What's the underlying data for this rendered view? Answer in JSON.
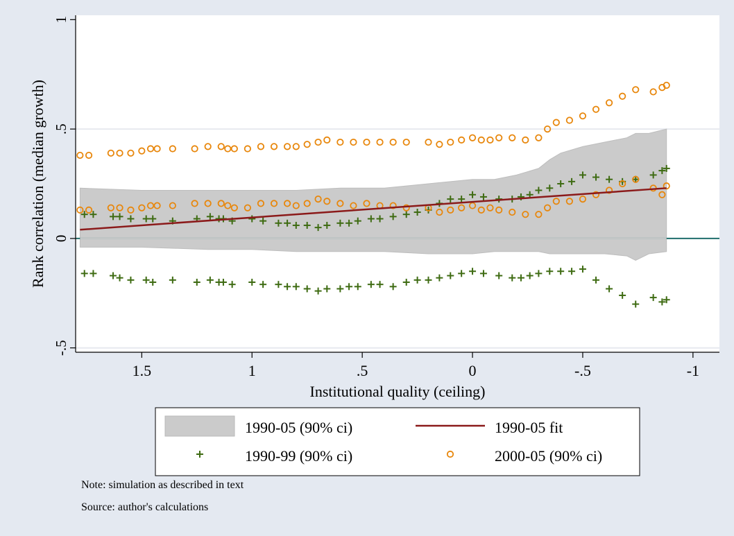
{
  "chart_data": {
    "type": "scatter",
    "title": "",
    "xlabel": "Institutional quality (ceiling)",
    "ylabel": "Rank correlation (median growth)",
    "xlim": [
      1.8,
      -1.12
    ],
    "ylim": [
      -0.52,
      1.02
    ],
    "x_reversed": true,
    "x_ticks": [
      1.5,
      1,
      0.5,
      0,
      -0.5,
      -1
    ],
    "x_tick_labels": [
      "1.5",
      "1",
      ".5",
      "0",
      "-.5",
      "-1"
    ],
    "y_ticks": [
      -0.5,
      0,
      0.5,
      1
    ],
    "y_tick_labels": [
      "-.5",
      "0",
      ".5",
      "1"
    ],
    "gridlines_y": [
      -0.5,
      0.5
    ],
    "reference_line_y": 0,
    "legend_position": "bottom",
    "series": [
      {
        "name": "1990-05 (90% ci)",
        "kind": "band",
        "color": "#cbcbcb",
        "x": [
          1.78,
          1.5,
          1.2,
          1.0,
          0.8,
          0.6,
          0.4,
          0.2,
          0.0,
          -0.1,
          -0.2,
          -0.3,
          -0.35,
          -0.4,
          -0.5,
          -0.6,
          -0.7,
          -0.74,
          -0.8,
          -0.88
        ],
        "lower": [
          -0.04,
          -0.04,
          -0.05,
          -0.05,
          -0.06,
          -0.06,
          -0.06,
          -0.07,
          -0.07,
          -0.06,
          -0.06,
          -0.06,
          -0.07,
          -0.07,
          -0.07,
          -0.07,
          -0.08,
          -0.1,
          -0.07,
          -0.06
        ],
        "upper": [
          0.23,
          0.22,
          0.22,
          0.22,
          0.22,
          0.23,
          0.23,
          0.25,
          0.27,
          0.27,
          0.29,
          0.32,
          0.36,
          0.39,
          0.42,
          0.44,
          0.46,
          0.48,
          0.48,
          0.5
        ]
      },
      {
        "name": "1990-05 fit",
        "kind": "line",
        "color": "#8b1a1a",
        "x": [
          1.78,
          -0.88
        ],
        "y": [
          0.04,
          0.23
        ]
      },
      {
        "name": "1990-99 (90% ci)",
        "kind": "plus",
        "color": "#3e6b12",
        "upper": {
          "x": [
            1.76,
            1.72,
            1.63,
            1.6,
            1.55,
            1.48,
            1.45,
            1.36,
            1.25,
            1.19,
            1.15,
            1.13,
            1.09,
            1.0,
            0.95,
            0.88,
            0.84,
            0.8,
            0.75,
            0.7,
            0.66,
            0.6,
            0.56,
            0.52,
            0.46,
            0.42,
            0.36,
            0.3,
            0.25,
            0.2,
            0.15,
            0.1,
            0.05,
            0.0,
            -0.05,
            -0.12,
            -0.18,
            -0.22,
            -0.26,
            -0.3,
            -0.35,
            -0.4,
            -0.45,
            -0.5,
            -0.56,
            -0.62,
            -0.68,
            -0.74,
            -0.82,
            -0.86,
            -0.88
          ],
          "y": [
            0.11,
            0.11,
            0.1,
            0.1,
            0.09,
            0.09,
            0.09,
            0.08,
            0.09,
            0.1,
            0.09,
            0.09,
            0.08,
            0.09,
            0.08,
            0.07,
            0.07,
            0.06,
            0.06,
            0.05,
            0.06,
            0.07,
            0.07,
            0.08,
            0.09,
            0.09,
            0.1,
            0.11,
            0.12,
            0.13,
            0.16,
            0.18,
            0.18,
            0.2,
            0.19,
            0.18,
            0.18,
            0.19,
            0.2,
            0.22,
            0.23,
            0.25,
            0.26,
            0.29,
            0.28,
            0.27,
            0.26,
            0.27,
            0.29,
            0.31,
            0.32
          ]
        },
        "lower": {
          "x": [
            1.76,
            1.72,
            1.63,
            1.6,
            1.55,
            1.48,
            1.45,
            1.36,
            1.25,
            1.19,
            1.15,
            1.13,
            1.09,
            1.0,
            0.95,
            0.88,
            0.84,
            0.8,
            0.75,
            0.7,
            0.66,
            0.6,
            0.56,
            0.52,
            0.46,
            0.42,
            0.36,
            0.3,
            0.25,
            0.2,
            0.15,
            0.1,
            0.05,
            0.0,
            -0.05,
            -0.12,
            -0.18,
            -0.22,
            -0.26,
            -0.3,
            -0.35,
            -0.4,
            -0.45,
            -0.5,
            -0.56,
            -0.62,
            -0.68,
            -0.74,
            -0.82,
            -0.86,
            -0.88
          ],
          "y": [
            -0.16,
            -0.16,
            -0.17,
            -0.18,
            -0.19,
            -0.19,
            -0.2,
            -0.19,
            -0.2,
            -0.19,
            -0.2,
            -0.2,
            -0.21,
            -0.2,
            -0.21,
            -0.21,
            -0.22,
            -0.22,
            -0.23,
            -0.24,
            -0.23,
            -0.23,
            -0.22,
            -0.22,
            -0.21,
            -0.21,
            -0.22,
            -0.2,
            -0.19,
            -0.19,
            -0.18,
            -0.17,
            -0.16,
            -0.15,
            -0.16,
            -0.17,
            -0.18,
            -0.18,
            -0.17,
            -0.16,
            -0.15,
            -0.15,
            -0.15,
            -0.14,
            -0.19,
            -0.23,
            -0.26,
            -0.3,
            -0.27,
            -0.29,
            -0.28
          ]
        }
      },
      {
        "name": "2000-05 (90% ci)",
        "kind": "circle",
        "color": "#e8870c",
        "upper": {
          "x": [
            1.78,
            1.74,
            1.64,
            1.6,
            1.55,
            1.5,
            1.46,
            1.43,
            1.36,
            1.26,
            1.2,
            1.14,
            1.11,
            1.08,
            1.02,
            0.96,
            0.9,
            0.84,
            0.8,
            0.75,
            0.7,
            0.66,
            0.6,
            0.54,
            0.48,
            0.42,
            0.36,
            0.3,
            0.2,
            0.15,
            0.1,
            0.05,
            0.0,
            -0.04,
            -0.08,
            -0.12,
            -0.18,
            -0.24,
            -0.3,
            -0.34,
            -0.38,
            -0.44,
            -0.5,
            -0.56,
            -0.62,
            -0.68,
            -0.74,
            -0.82,
            -0.86,
            -0.88
          ],
          "y": [
            0.38,
            0.38,
            0.39,
            0.39,
            0.39,
            0.4,
            0.41,
            0.41,
            0.41,
            0.41,
            0.42,
            0.42,
            0.41,
            0.41,
            0.41,
            0.42,
            0.42,
            0.42,
            0.42,
            0.43,
            0.44,
            0.45,
            0.44,
            0.44,
            0.44,
            0.44,
            0.44,
            0.44,
            0.44,
            0.43,
            0.44,
            0.45,
            0.46,
            0.45,
            0.45,
            0.46,
            0.46,
            0.45,
            0.46,
            0.5,
            0.53,
            0.54,
            0.56,
            0.59,
            0.62,
            0.65,
            0.68,
            0.67,
            0.69,
            0.7
          ]
        },
        "lower": {
          "x": [
            1.78,
            1.74,
            1.64,
            1.6,
            1.55,
            1.5,
            1.46,
            1.43,
            1.36,
            1.26,
            1.2,
            1.14,
            1.11,
            1.08,
            1.02,
            0.96,
            0.9,
            0.84,
            0.8,
            0.75,
            0.7,
            0.66,
            0.6,
            0.54,
            0.48,
            0.42,
            0.36,
            0.3,
            0.2,
            0.15,
            0.1,
            0.05,
            0.0,
            -0.04,
            -0.08,
            -0.12,
            -0.18,
            -0.24,
            -0.3,
            -0.34,
            -0.38,
            -0.44,
            -0.5,
            -0.56,
            -0.62,
            -0.68,
            -0.74,
            -0.82,
            -0.86,
            -0.88
          ],
          "y": [
            0.13,
            0.13,
            0.14,
            0.14,
            0.13,
            0.14,
            0.15,
            0.15,
            0.15,
            0.16,
            0.16,
            0.16,
            0.15,
            0.14,
            0.14,
            0.16,
            0.16,
            0.16,
            0.15,
            0.16,
            0.18,
            0.17,
            0.16,
            0.15,
            0.16,
            0.15,
            0.15,
            0.14,
            0.14,
            0.12,
            0.13,
            0.14,
            0.15,
            0.13,
            0.14,
            0.13,
            0.12,
            0.11,
            0.11,
            0.14,
            0.17,
            0.17,
            0.18,
            0.2,
            0.22,
            0.25,
            0.27,
            0.23,
            0.2,
            0.24
          ]
        }
      }
    ]
  },
  "notes": {
    "note": "Note: simulation as described in text",
    "source": "Source: author's calculations"
  }
}
